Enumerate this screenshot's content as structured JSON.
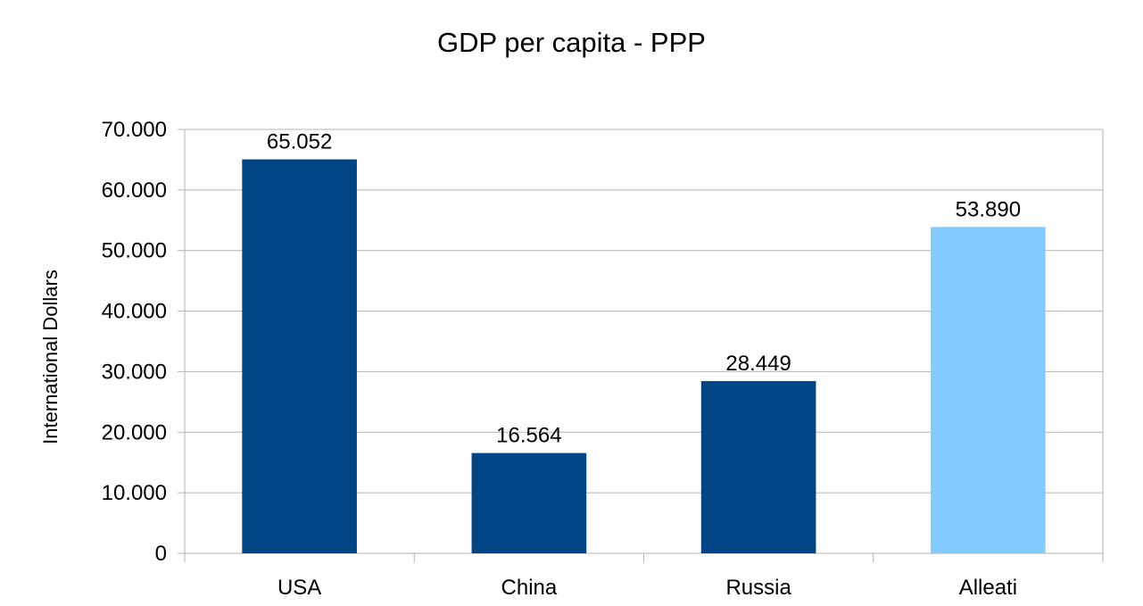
{
  "chart_data": {
    "type": "bar",
    "title": "GDP per capita - PPP",
    "xlabel": "",
    "ylabel": "International Dollars",
    "categories": [
      "USA",
      "China",
      "Russia",
      "Alleati"
    ],
    "values": [
      65052,
      16564,
      28449,
      53890
    ],
    "data_labels": [
      "65.052",
      "16.564",
      "28.449",
      "53.890"
    ],
    "bar_colors": [
      "#004586",
      "#004586",
      "#004586",
      "#83caff"
    ],
    "ylim": [
      0,
      70000
    ],
    "y_ticks": [
      0,
      10000,
      20000,
      30000,
      40000,
      50000,
      60000,
      70000
    ],
    "y_tick_labels": [
      "0",
      "10.000",
      "20.000",
      "30.000",
      "40.000",
      "50.000",
      "60.000",
      "70.000"
    ],
    "grid": true,
    "legend": "none"
  }
}
